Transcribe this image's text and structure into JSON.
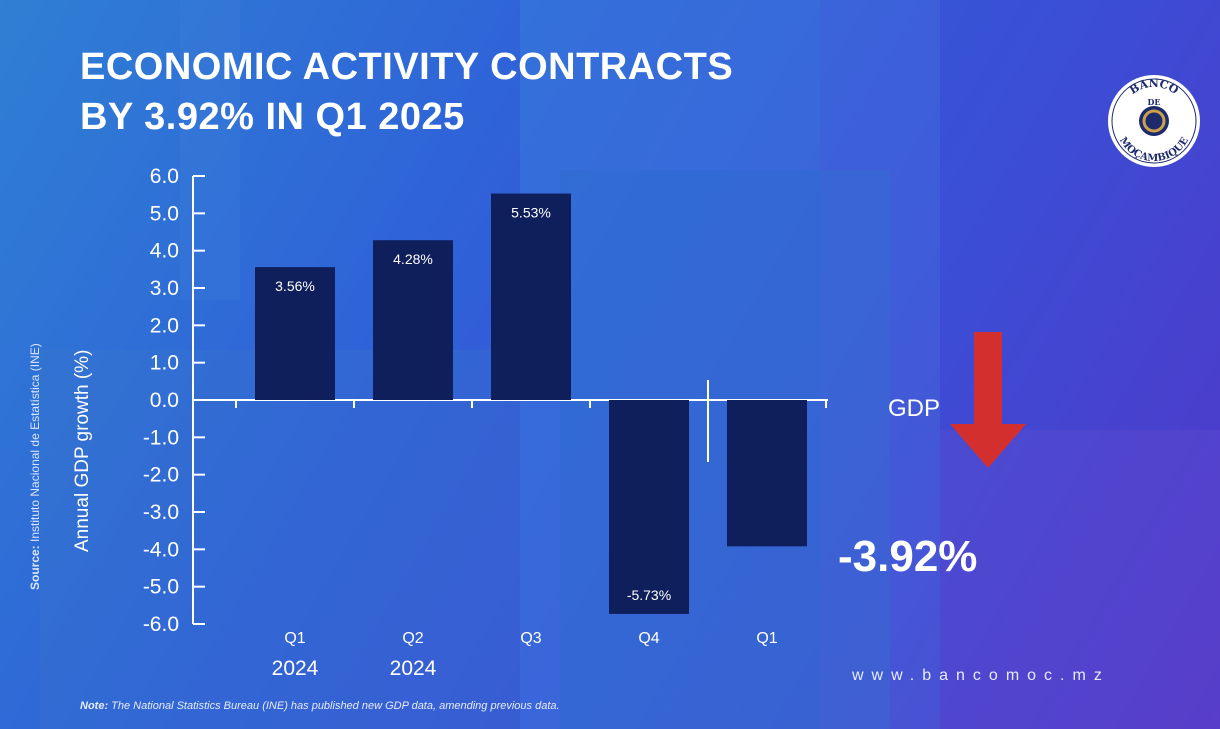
{
  "title": {
    "line1": "ECONOMIC ACTIVITY CONTRACTS",
    "line2": "BY 3.92% IN Q1 2025"
  },
  "source": {
    "label": "Source:",
    "text": "Instituto Nacional de Estatística (INE)"
  },
  "callout": {
    "label": "GDP",
    "value": "-3.92%",
    "arrow_icon": "down-arrow-icon",
    "arrow_color": "#d32f2f"
  },
  "logo": {
    "text_top": "BANCO",
    "text_middle": "DE",
    "text_bottom": "MOÇAMBIQUE",
    "icon": "banco-de-mocambique-seal-icon"
  },
  "website": "www.bancomoc.mz",
  "note": {
    "label": "Note:",
    "text": "The National Statistics Bureau (INE) has published new GDP data, amending previous data."
  },
  "chart_data": {
    "type": "bar",
    "title": "",
    "ylabel": "Annual GDP growth (%)",
    "xlabel": "",
    "ylim": [
      -6.0,
      6.0
    ],
    "yticks": [
      "6.0",
      "5.0",
      "4.0",
      "3.0",
      "2.0",
      "1.0",
      "0.0",
      "-1.0",
      "-2.0",
      "-3.0",
      "-4.0",
      "-5.0",
      "-6.0"
    ],
    "categories": [
      "Q1",
      "Q2",
      "Q3",
      "Q4",
      "Q1"
    ],
    "year_labels": [
      "2024",
      "2024",
      "",
      "",
      ""
    ],
    "values": [
      3.56,
      4.28,
      5.53,
      -5.73,
      -3.92
    ],
    "data_labels": [
      "3.56%",
      "4.28%",
      "5.53%",
      "-5.73%",
      ""
    ],
    "bar_color": "#0f1f5c",
    "axis_color": "#ffffff",
    "grid": false,
    "legend": "none"
  }
}
